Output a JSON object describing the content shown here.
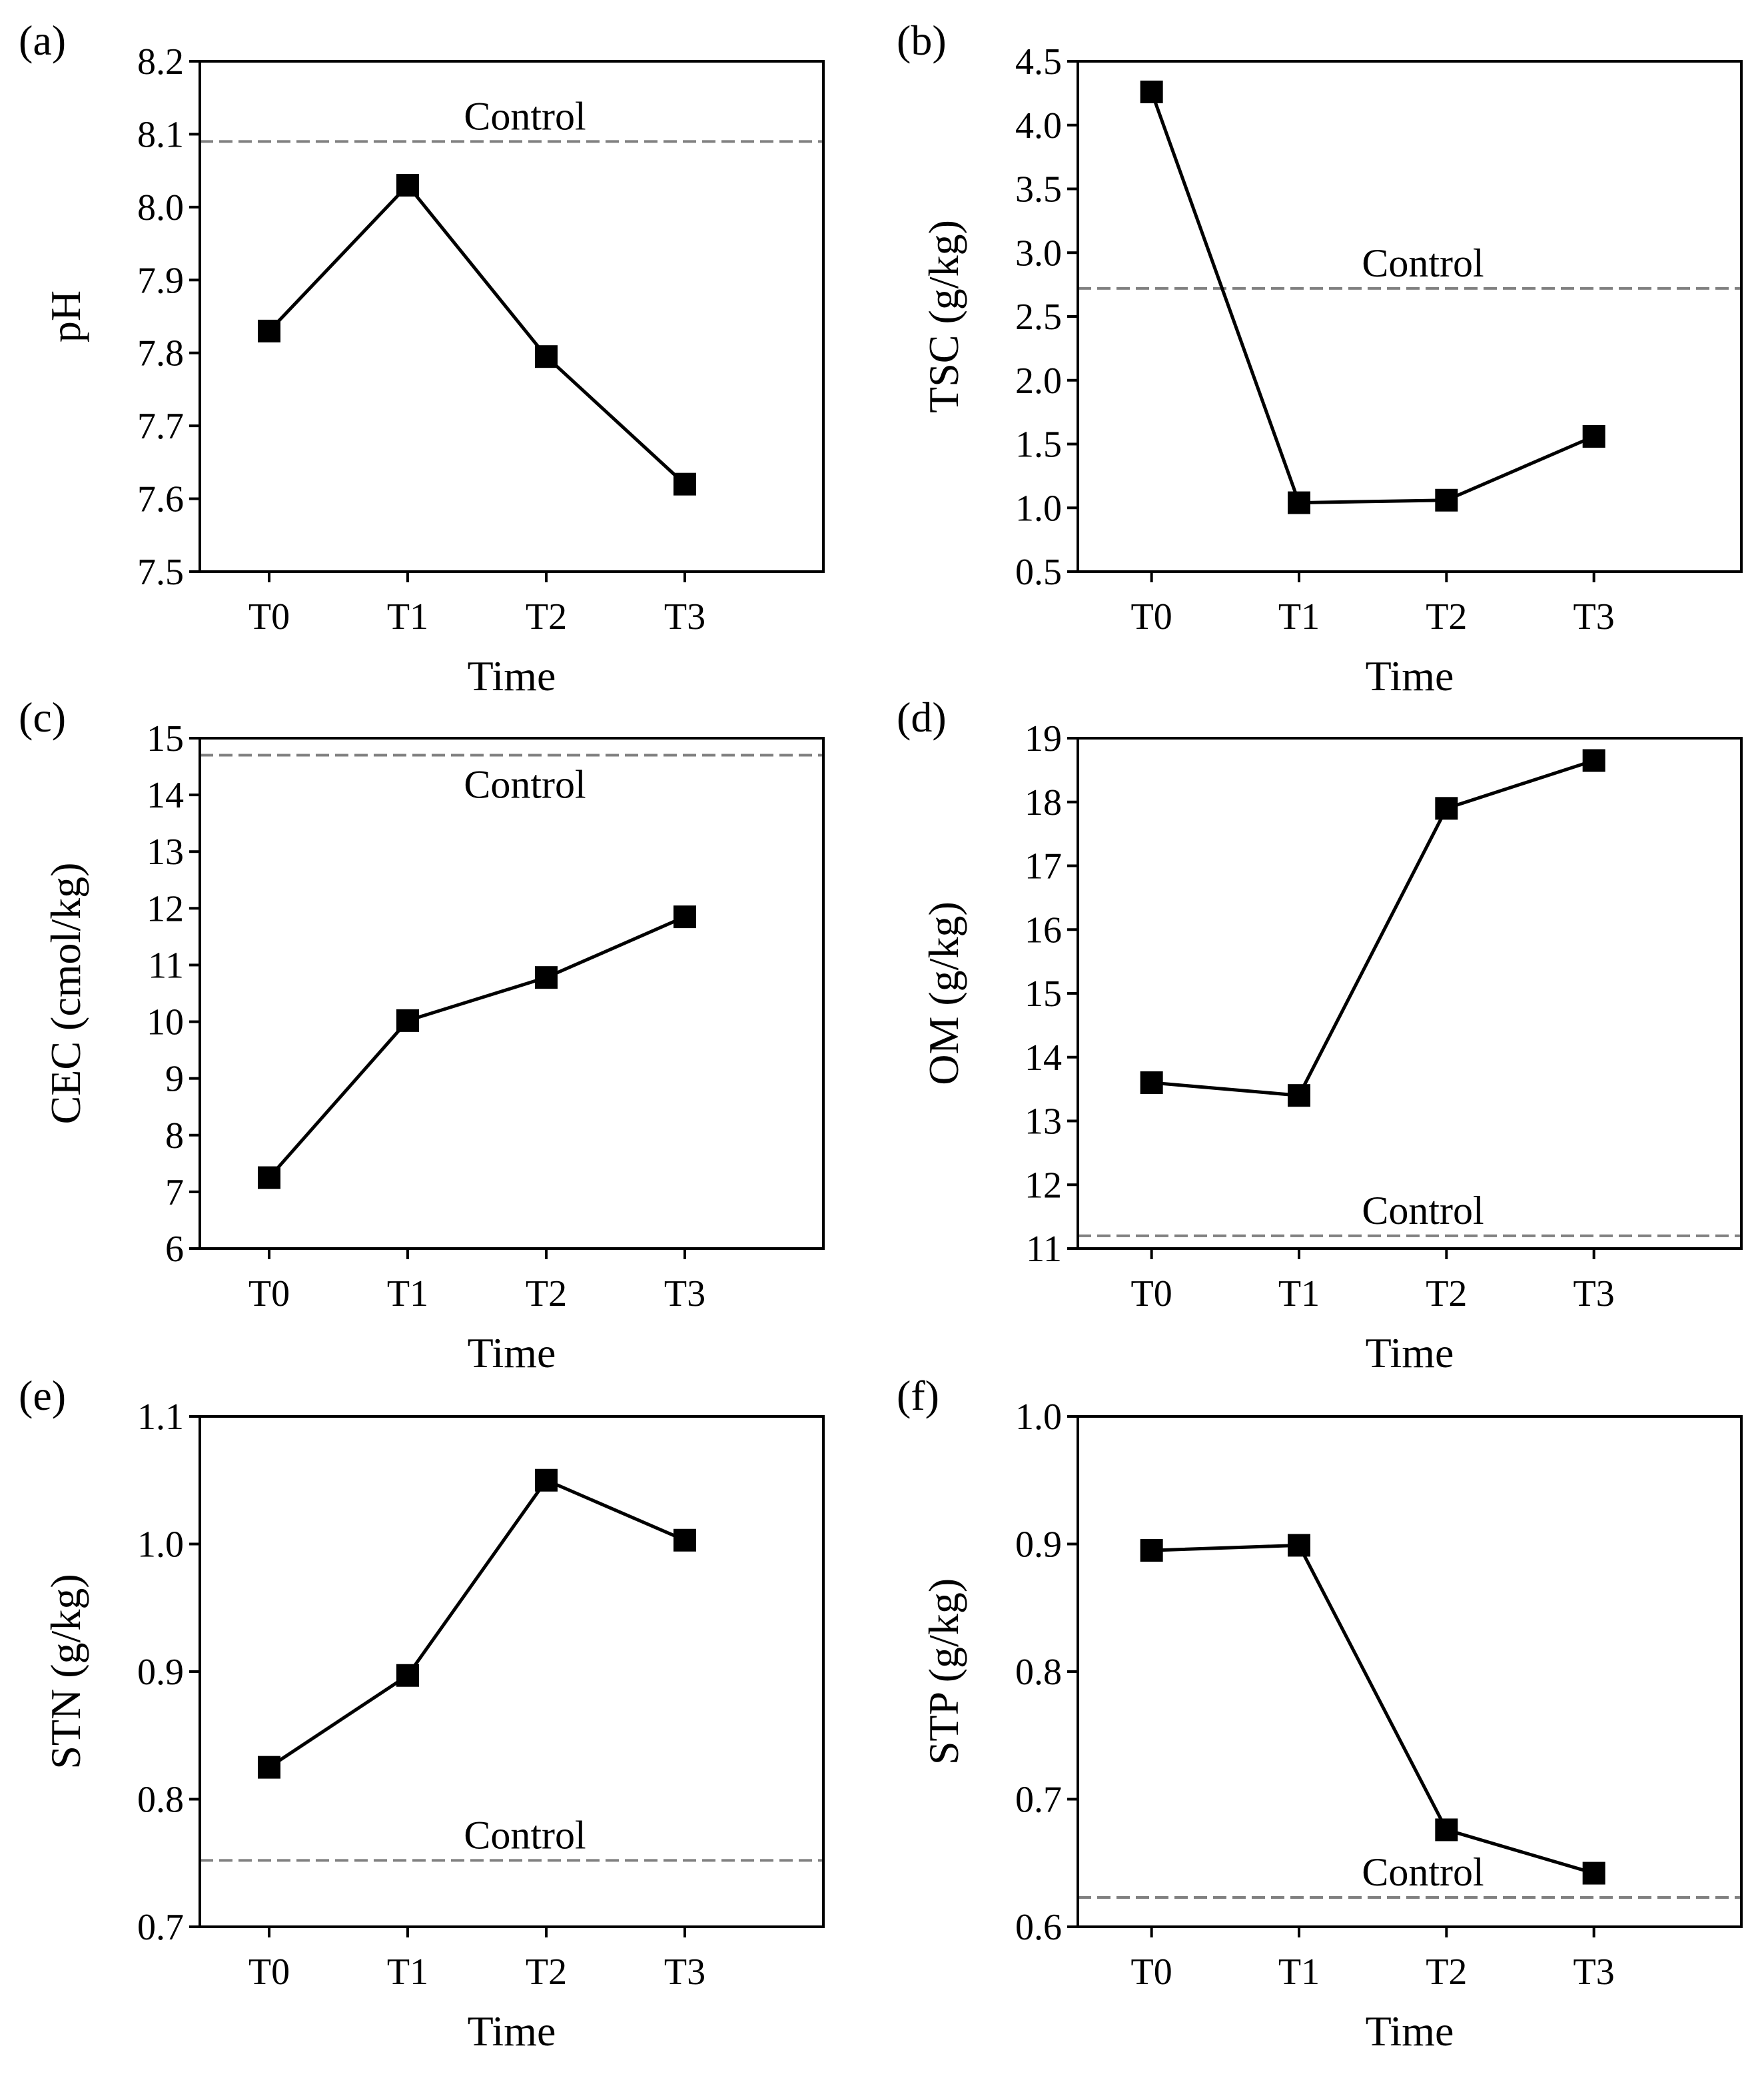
{
  "chart_data": [
    {
      "panel": "(a)",
      "type": "line",
      "categories": [
        "T0",
        "T1",
        "T2",
        "T3"
      ],
      "values": [
        7.83,
        8.03,
        7.795,
        7.62
      ],
      "control": 8.09,
      "control_label": "Control",
      "xlabel": "Time",
      "ylabel": "pH",
      "ylim": [
        7.5,
        8.2
      ],
      "yticks": [
        "7.5",
        "7.6",
        "7.7",
        "7.8",
        "7.9",
        "8.0",
        "8.1",
        "8.2"
      ],
      "control_text_side": "above"
    },
    {
      "panel": "(b)",
      "type": "line",
      "categories": [
        "T0",
        "T1",
        "T2",
        "T3"
      ],
      "values": [
        4.26,
        1.04,
        1.06,
        1.56
      ],
      "control": 2.72,
      "control_label": "Control",
      "xlabel": "Time",
      "ylabel": "TSC (g/kg)",
      "ylim": [
        0.5,
        4.5
      ],
      "yticks": [
        "0.5",
        "1.0",
        "1.5",
        "2.0",
        "2.5",
        "3.0",
        "3.5",
        "4.0",
        "4.5"
      ],
      "control_text_side": "above"
    },
    {
      "panel": "(c)",
      "type": "line",
      "categories": [
        "T0",
        "T1",
        "T2",
        "T3"
      ],
      "values": [
        7.25,
        10.02,
        10.78,
        11.85
      ],
      "control": 14.7,
      "control_label": "Control",
      "xlabel": "Time",
      "ylabel": "CEC (cmol/kg)",
      "ylim": [
        6,
        15
      ],
      "yticks": [
        "6",
        "7",
        "8",
        "9",
        "10",
        "11",
        "12",
        "13",
        "14",
        "15"
      ],
      "control_text_side": "below"
    },
    {
      "panel": "(d)",
      "type": "line",
      "categories": [
        "T0",
        "T1",
        "T2",
        "T3"
      ],
      "values": [
        13.6,
        13.4,
        17.9,
        18.65
      ],
      "control": 11.2,
      "control_label": "Control",
      "xlabel": "Time",
      "ylabel": "OM (g/kg)",
      "ylim": [
        11,
        19
      ],
      "yticks": [
        "11",
        "12",
        "13",
        "14",
        "15",
        "16",
        "17",
        "18",
        "19"
      ],
      "control_text_side": "above"
    },
    {
      "panel": "(e)",
      "type": "line",
      "categories": [
        "T0",
        "T1",
        "T2",
        "T3"
      ],
      "values": [
        0.825,
        0.897,
        1.05,
        1.003
      ],
      "control": 0.752,
      "control_label": "Control",
      "xlabel": "Time",
      "ylabel": "STN (g/kg)",
      "ylim": [
        0.7,
        1.1
      ],
      "yticks": [
        "0.7",
        "0.8",
        "0.9",
        "1.0",
        "1.1"
      ],
      "control_text_side": "above"
    },
    {
      "panel": "(f)",
      "type": "line",
      "categories": [
        "T0",
        "T1",
        "T2",
        "T3"
      ],
      "values": [
        0.895,
        0.899,
        0.676,
        0.642
      ],
      "control": 0.623,
      "control_label": "Control",
      "xlabel": "Time",
      "ylabel": "STP (g/kg)",
      "ylim": [
        0.6,
        1.0
      ],
      "yticks": [
        "0.6",
        "0.7",
        "0.8",
        "0.9",
        "1.0"
      ],
      "control_text_side": "above"
    }
  ]
}
